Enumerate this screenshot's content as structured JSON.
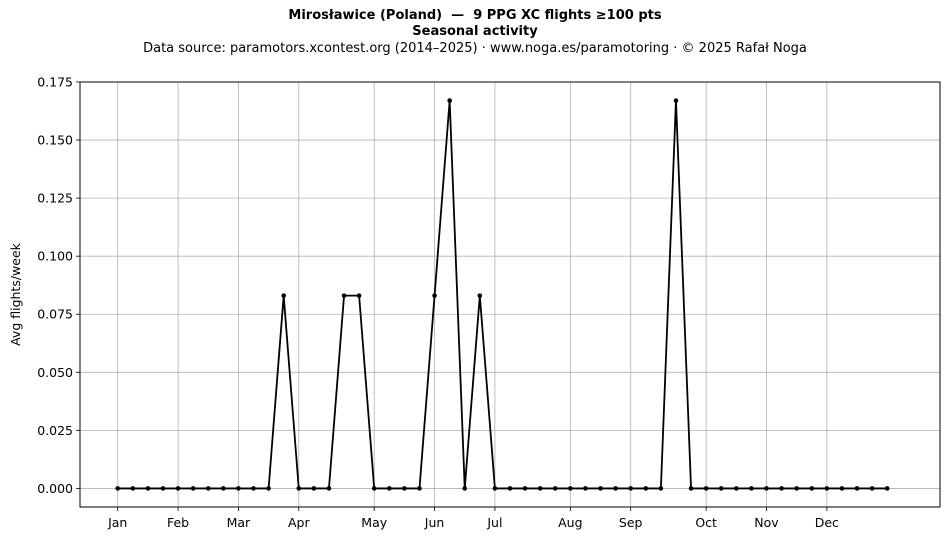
{
  "chart_data": {
    "type": "line",
    "title": "Mirosławice (Poland)  —  9 PPG XC flights ≥100 pts",
    "subtitle": "Seasonal activity",
    "source": "Data source: paramotors.xcontest.org (2014–2025)  ·  www.noga.es/paramotoring  ·  © 2025 Rafał Noga",
    "xlabel": "",
    "ylabel": "Avg flights/week",
    "ylim": [
      -0.008,
      0.175
    ],
    "xlim": [
      -2.5,
      54.5
    ],
    "yticks": [
      0.0,
      0.025,
      0.05,
      0.075,
      0.1,
      0.125,
      0.15,
      0.175
    ],
    "ytick_labels": [
      "0.000",
      "0.025",
      "0.050",
      "0.075",
      "0.100",
      "0.125",
      "0.150",
      "0.175"
    ],
    "xticks": [
      0,
      4,
      8,
      12,
      17,
      21,
      25,
      30,
      34,
      39,
      43,
      47
    ],
    "xtick_labels": [
      "Jan",
      "Feb",
      "Mar",
      "Apr",
      "May",
      "Jun",
      "Jul",
      "Aug",
      "Sep",
      "Oct",
      "Nov",
      "Dec"
    ],
    "grid": true,
    "line_color": "#000000",
    "x": [
      0,
      1,
      2,
      3,
      4,
      5,
      6,
      7,
      8,
      9,
      10,
      11,
      12,
      13,
      14,
      15,
      16,
      17,
      18,
      19,
      20,
      21,
      22,
      23,
      24,
      25,
      26,
      27,
      28,
      29,
      30,
      31,
      32,
      33,
      34,
      35,
      36,
      37,
      38,
      39,
      40,
      41,
      42,
      43,
      44,
      45,
      46,
      47,
      48,
      49,
      50,
      51
    ],
    "values": [
      0,
      0,
      0,
      0,
      0,
      0,
      0,
      0,
      0,
      0,
      0,
      0.083,
      0,
      0,
      0,
      0.083,
      0.083,
      0,
      0,
      0,
      0,
      0.083,
      0.167,
      0,
      0.083,
      0,
      0,
      0,
      0,
      0,
      0,
      0,
      0,
      0,
      0,
      0,
      0,
      0.167,
      0,
      0,
      0,
      0,
      0,
      0,
      0,
      0,
      0,
      0,
      0,
      0,
      0,
      0
    ]
  }
}
